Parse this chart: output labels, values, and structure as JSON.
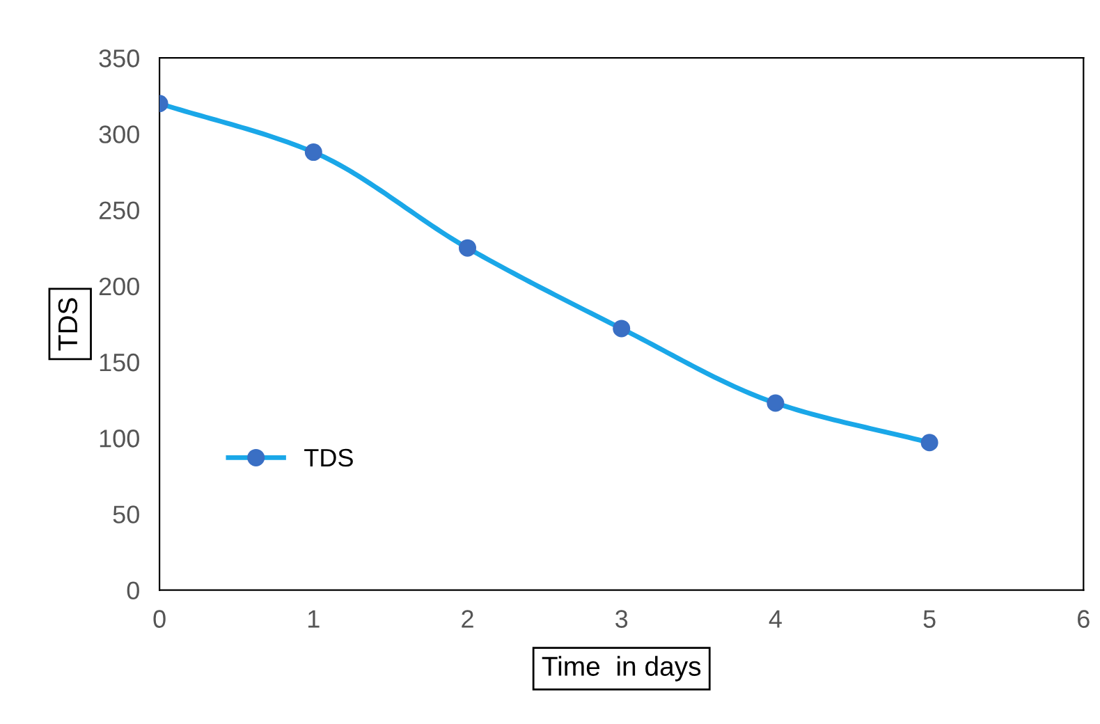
{
  "chart_data": {
    "type": "line",
    "xlabel": "Time  in days",
    "ylabel": "TDS",
    "x": [
      0,
      1,
      2,
      3,
      4,
      5
    ],
    "series": [
      {
        "name": "TDS",
        "color": "#1aa7e8",
        "values": [
          320,
          288,
          225,
          172,
          123,
          97
        ]
      }
    ],
    "xlim": [
      0,
      6
    ],
    "xticks": [
      0,
      1,
      2,
      3,
      4,
      5,
      6
    ],
    "ylim": [
      0,
      350
    ],
    "yticks": [
      0,
      50,
      100,
      150,
      200,
      250,
      300,
      350
    ],
    "marker": "circle",
    "line_style": "solid",
    "grid": false,
    "legend": "bottom left"
  }
}
